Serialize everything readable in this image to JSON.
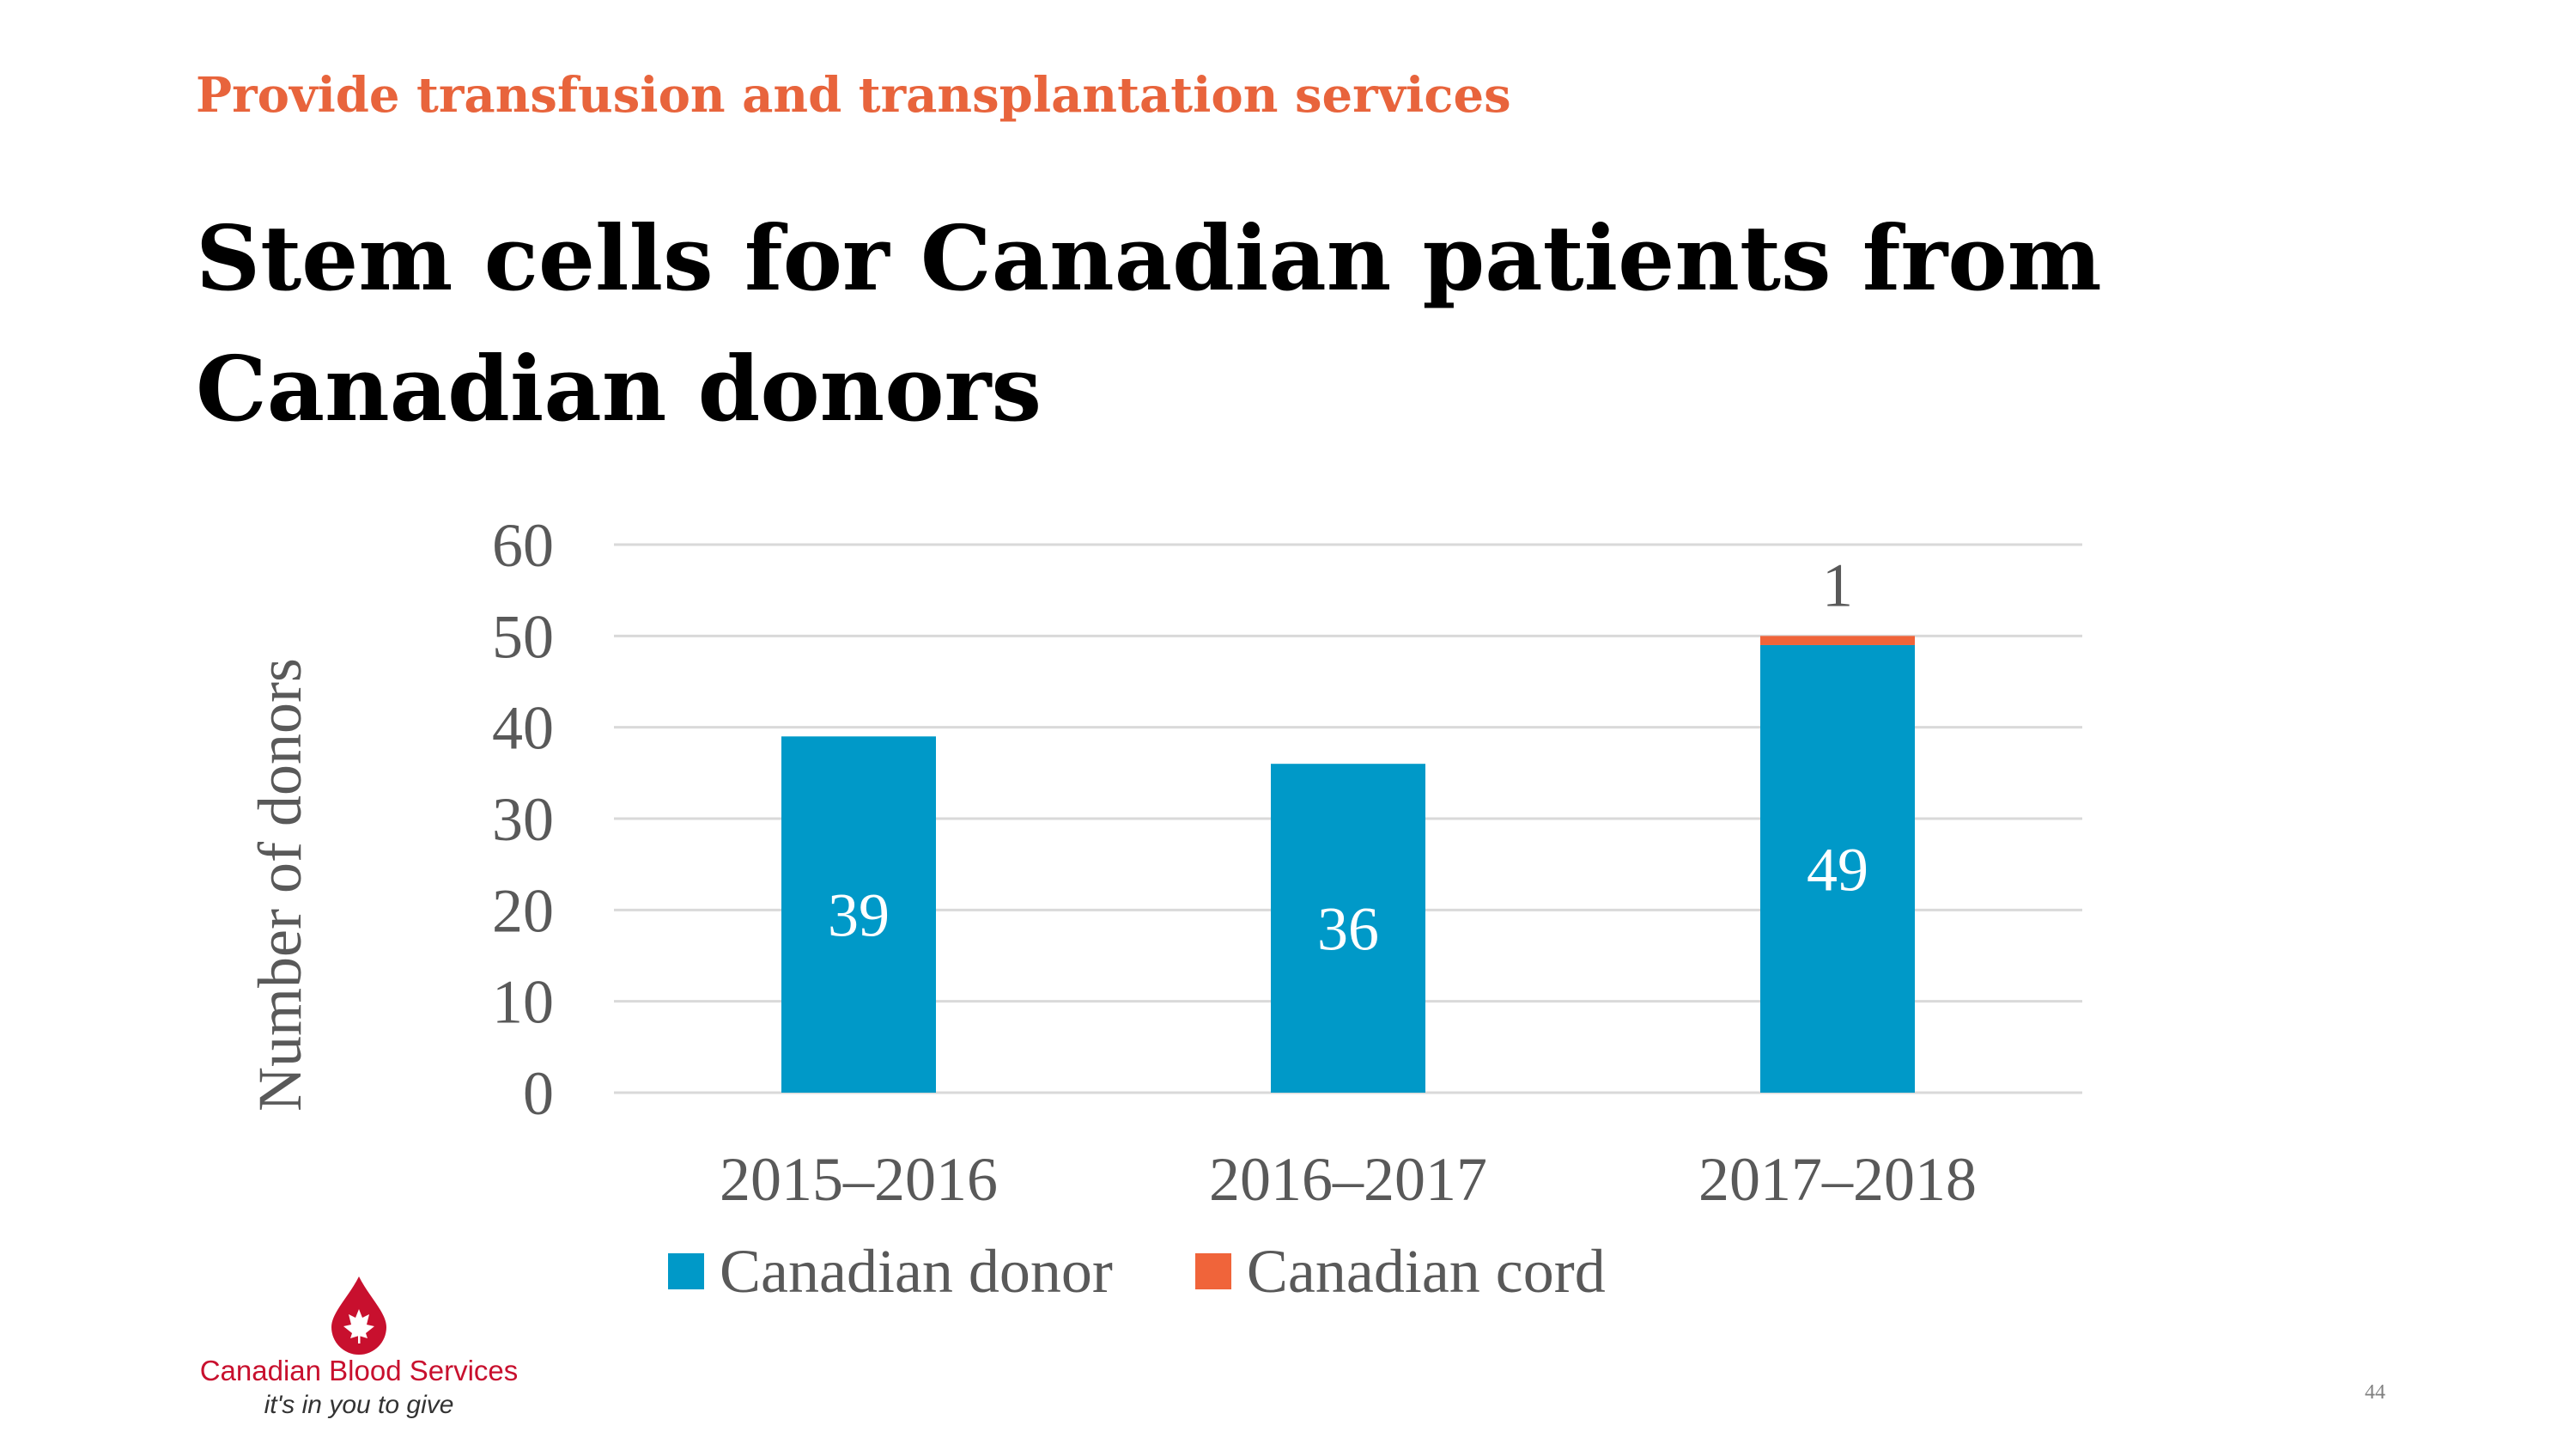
{
  "slide": {
    "kicker": "Provide transfusion and transplantation services",
    "title_lines": [
      "Stem cells for Canadian patients from",
      "Canadian donors"
    ],
    "page_number": "44"
  },
  "logo": {
    "name": "Canadian Blood Services",
    "tagline": "it's in you to give",
    "icon": "maple-leaf-blood-drop-icon",
    "color": "#c8102e"
  },
  "chart_data": {
    "type": "bar",
    "stacked": true,
    "categories": [
      "2015–2016",
      "2016–2017",
      "2017–2018"
    ],
    "series": [
      {
        "name": "Canadian donor",
        "color": "#0099c8",
        "values": [
          39,
          36,
          49
        ],
        "labels": [
          "39",
          "36",
          "49"
        ]
      },
      {
        "name": "Canadian cord",
        "color": "#f0643a",
        "values": [
          0,
          0,
          1
        ],
        "labels": [
          "",
          "",
          "1"
        ]
      }
    ],
    "ylabel": "Number of donors",
    "xlabel": "",
    "ylim": [
      0,
      60
    ],
    "yticks": [
      0,
      10,
      20,
      30,
      40,
      50,
      60
    ],
    "grid": true,
    "legend_position": "bottom"
  }
}
